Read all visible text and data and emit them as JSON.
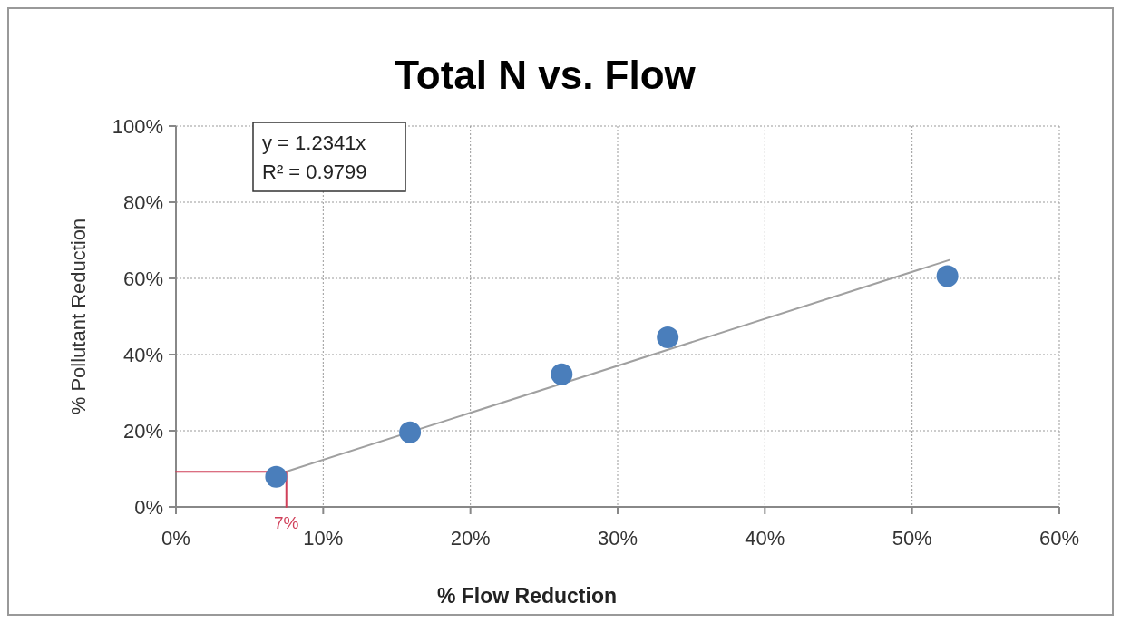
{
  "chart_data": {
    "type": "scatter",
    "title": "Total N vs. Flow",
    "xlabel": "% Flow Reduction",
    "ylabel": "% Pollutant Reduction",
    "annotations": [
      "y = 1.2341x",
      "R² = 0.9799",
      {
        "text": "7%",
        "x": 7.5,
        "y": 0
      }
    ],
    "x": [
      6.8,
      15.9,
      26.2,
      33.4,
      52.4
    ],
    "series": [
      {
        "color": "#4a7ebb",
        "values": [
          7.9,
          19.6,
          34.8,
          44.5,
          60.6
        ],
        "marker": "circle"
      },
      {
        "type": "line",
        "color": "#a0a0a0",
        "x": [
          7.5,
          52.5
        ],
        "values": [
          9.3,
          64.8
        ],
        "marker": "none"
      },
      {
        "type": "line",
        "color": "#d0405a",
        "x": [
          0,
          7.5,
          7.5
        ],
        "values": [
          9.2,
          9.2,
          0
        ],
        "marker": "none"
      }
    ],
    "xlim": [
      0,
      60
    ],
    "ylim": [
      0,
      100
    ],
    "xticks": [
      {
        "value": 0,
        "label": "0%"
      },
      {
        "value": 10,
        "label": "10%"
      },
      {
        "value": 20,
        "label": "20%"
      },
      {
        "value": 30,
        "label": "30%"
      },
      {
        "value": 40,
        "label": "40%"
      },
      {
        "value": 50,
        "label": "50%"
      },
      {
        "value": 60,
        "label": "60%"
      }
    ],
    "yticks": [
      {
        "value": 0,
        "label": "0%"
      },
      {
        "value": 20,
        "label": "20%"
      },
      {
        "value": 40,
        "label": "40%"
      },
      {
        "value": 60,
        "label": "60%"
      },
      {
        "value": 80,
        "label": "80%"
      },
      {
        "value": 100,
        "label": "100%"
      }
    ],
    "grid": true
  }
}
